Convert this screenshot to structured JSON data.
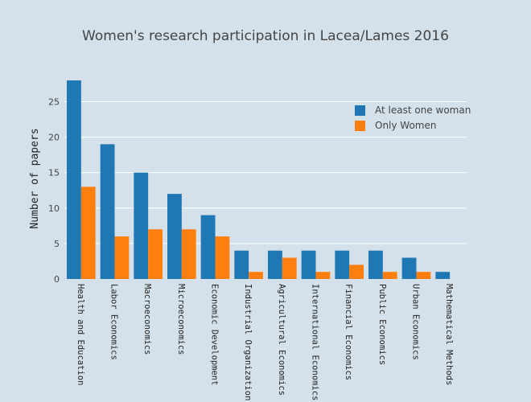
{
  "chart_data": {
    "type": "bar",
    "title": "Women's research participation in Lacea/Lames 2016",
    "xlabel": "",
    "ylabel": "Number of papers",
    "ylim": [
      0,
      28
    ],
    "yticks": [
      0,
      5,
      10,
      15,
      20,
      25
    ],
    "grid": true,
    "legend_position": "top-right",
    "categories": [
      "Health and Education",
      "Labor Economics",
      "Macroeconomics",
      "Microeconomics",
      "Economic Development",
      "Industrial Organization",
      "Agricultural Economics",
      "International Economics",
      "Financial Economics",
      "Public Economics",
      "Urban Economics",
      "Mathematical Methods"
    ],
    "series": [
      {
        "name": "At least one woman",
        "color": "#1f77b4",
        "values": [
          28,
          19,
          15,
          12,
          9,
          4,
          4,
          4,
          4,
          4,
          3,
          1
        ]
      },
      {
        "name": "Only Women",
        "color": "#ff7f0e",
        "values": [
          13,
          6,
          7,
          7,
          6,
          1,
          3,
          1,
          2,
          1,
          1,
          0
        ]
      }
    ]
  }
}
